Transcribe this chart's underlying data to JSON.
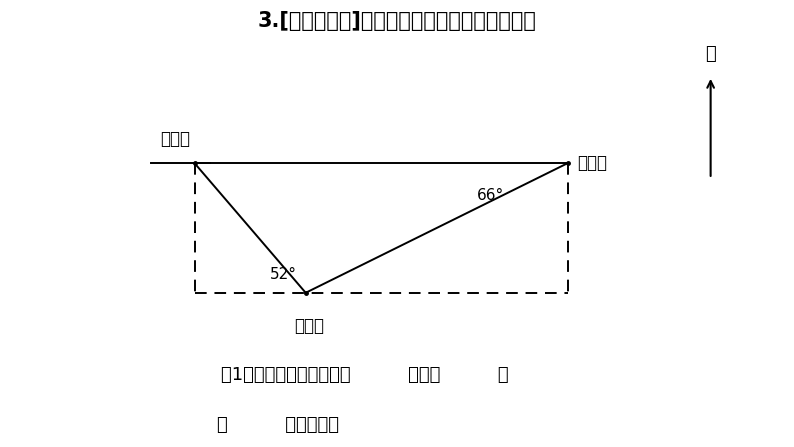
{
  "title": "3.[方向与距离]下面为公园的三个景点平面图。",
  "title_fontsize": 15,
  "bg_color": "#ffffff",
  "text_color": "#000000",
  "label_youlechang": "游乐场",
  "label_youyongguan": "游泳馆",
  "label_paomachang": "跑马场",
  "angle_52": "52°",
  "angle_66": "66°",
  "north_label": "北",
  "bottom_text1": "（1）游乐场在游泳馆的（          ）偏（          ）",
  "bottom_text2": "（          ）方向上。",
  "font_size_label": 12,
  "font_size_angle": 11,
  "font_size_bottom": 13,
  "font_size_north": 13,
  "ylc": [
    0.245,
    0.635
  ],
  "yyg": [
    0.385,
    0.345
  ],
  "pmc": [
    0.715,
    0.635
  ]
}
